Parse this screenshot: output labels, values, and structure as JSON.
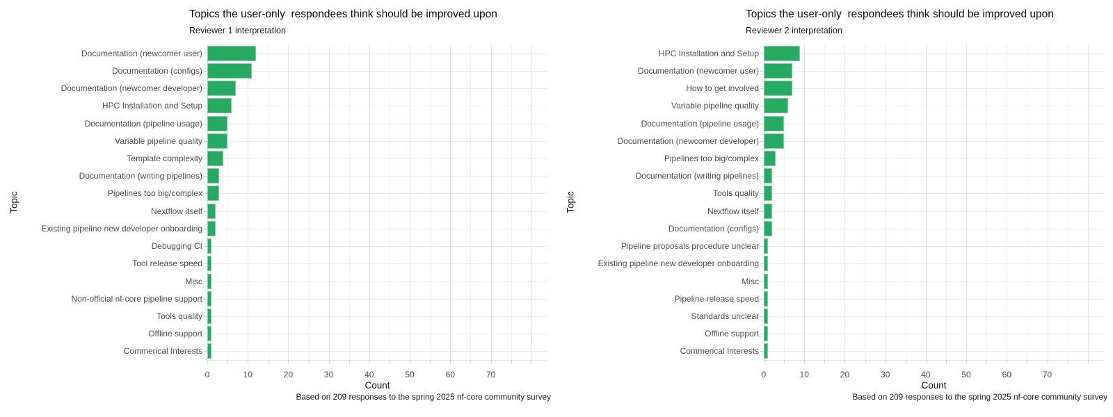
{
  "colors": {
    "bar": "#28a963",
    "bar_border": "#82cfa6",
    "grid_major": "#e4e4e4",
    "grid_minor": "#f0f0f0",
    "axis_text": "#4d4d4d"
  },
  "chart_data": [
    {
      "type": "bar",
      "orientation": "horizontal",
      "title": "Topics the user-only  respondees think should be improved upon",
      "subtitle": "Reviewer 1 interpretation",
      "xlabel": "Count",
      "ylabel": "Topic",
      "caption": "Based on 209 responses to the spring 2025 nf-core community survey",
      "xlim": [
        0,
        84
      ],
      "xticks": [
        0,
        10,
        20,
        30,
        40,
        50,
        60,
        70
      ],
      "gridline_step": 5,
      "grid": true,
      "legend_position": "none",
      "categories": [
        "Documentation (newcomer user)",
        "Documentation (configs)",
        "Documentation (newcomer developer)",
        "HPC Installation and Setup",
        "Documentation (pipeline usage)",
        "Variable pipeline quality",
        "Template complexity",
        "Documentation (writing pipelines)",
        "Pipelines too big/complex",
        "Nextflow itself",
        "Existing pipeline new developer onboarding",
        "Debugging CI",
        "Tool release speed",
        "Misc",
        "Non-official nf-core pipeline support",
        "Tools quality",
        "Offline support",
        "Commerical Interests"
      ],
      "values": [
        12,
        11,
        7,
        6,
        5,
        5,
        4,
        3,
        3,
        2,
        2,
        1,
        1,
        1,
        1,
        1,
        1,
        1
      ]
    },
    {
      "type": "bar",
      "orientation": "horizontal",
      "title": "Topics the user-only  respondees think should be improved upon",
      "subtitle": "Reviewer 2 interpretation",
      "xlabel": "Count",
      "ylabel": "Topic",
      "caption": "Based on 209 responses to the spring 2025 nf-core community survey",
      "xlim": [
        0,
        84
      ],
      "xticks": [
        0,
        10,
        20,
        30,
        40,
        50,
        60,
        70
      ],
      "gridline_step": 5,
      "grid": true,
      "legend_position": "none",
      "categories": [
        "HPC Installation and Setup",
        "Documentation (newcomer user)",
        "How to get involved",
        "Variable pipeline quality",
        "Documentation (pipeline usage)",
        "Documentation (newcomer developer)",
        "Pipelines too big/complex",
        "Documentation (writing pipelines)",
        "Tools quality",
        "Nextflow itself",
        "Documentation (configs)",
        "Pipeline proposals procedure unclear",
        "Existing pipeline new developer onboarding",
        "Misc",
        "Pipeline release speed",
        "Standards unclear",
        "Offline support",
        "Commerical Interests"
      ],
      "values": [
        9,
        7,
        7,
        6,
        5,
        5,
        3,
        2,
        2,
        2,
        2,
        1,
        1,
        1,
        1,
        1,
        1,
        1
      ]
    }
  ]
}
